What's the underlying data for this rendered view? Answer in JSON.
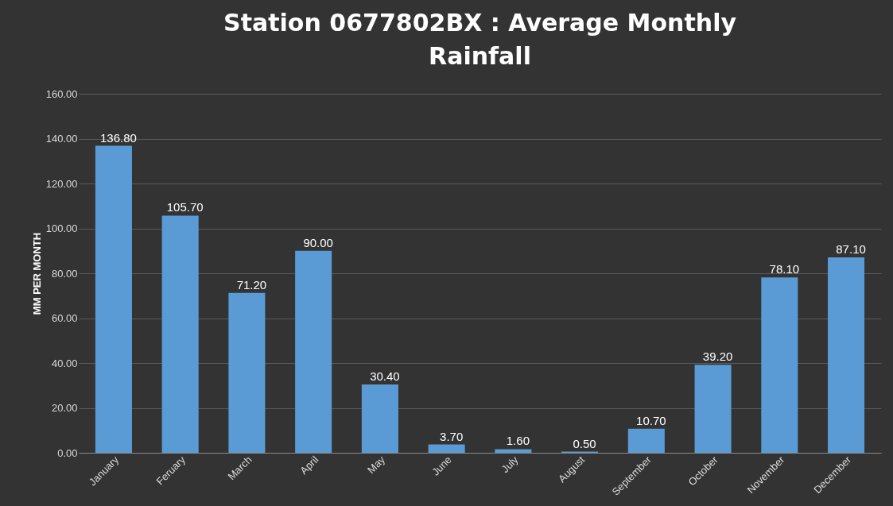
{
  "chart_data": {
    "type": "bar",
    "title": "Station  0677802BX : Average Monthly Rainfall",
    "ylabel": "MM PER MONTH",
    "categories": [
      "January",
      "Feruary",
      "March",
      "April",
      "May",
      "June",
      "July",
      "August",
      "September",
      "October",
      "November",
      "December"
    ],
    "values": [
      136.8,
      105.7,
      71.2,
      90.0,
      30.4,
      3.7,
      1.6,
      0.5,
      10.7,
      39.2,
      78.1,
      87.1
    ],
    "value_labels": [
      "136.80",
      "105.70",
      "71.20",
      "90.00",
      "30.40",
      "3.70",
      "1.60",
      "0.50",
      "10.70",
      "39.20",
      "78.10",
      "87.10"
    ],
    "color": "#5b9bd5",
    "ylim": [
      0,
      160
    ],
    "yticks": [
      {
        "value": 0,
        "label": "0.00"
      },
      {
        "value": 20,
        "label": "20.00"
      },
      {
        "value": 40,
        "label": "40.00"
      },
      {
        "value": 60,
        "label": "60.00"
      },
      {
        "value": 80,
        "label": "80.00"
      },
      {
        "value": 100,
        "label": "100.00"
      },
      {
        "value": 120,
        "label": "120.00"
      },
      {
        "value": 140,
        "label": "140.00"
      },
      {
        "value": 160,
        "label": "160.00"
      }
    ],
    "grid": "y"
  }
}
